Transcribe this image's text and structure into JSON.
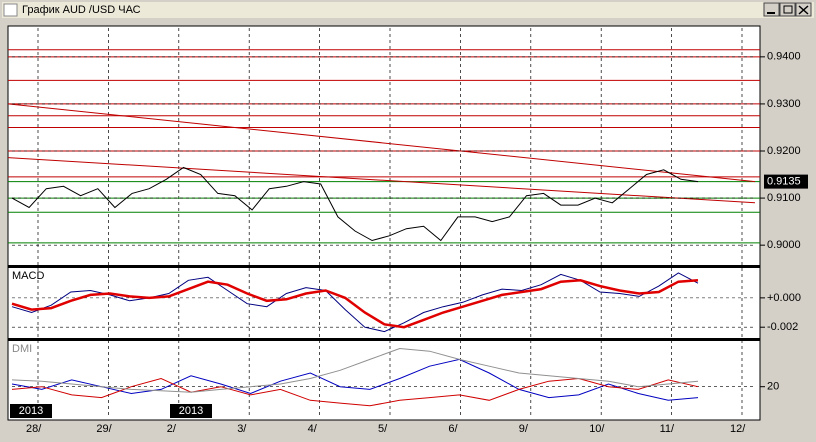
{
  "window": {
    "title": "График AUD /USD ЧАС"
  },
  "x_axis": {
    "labels": [
      "28/",
      "29/",
      "2/",
      "3/",
      "4/",
      "5/",
      "6/",
      "9/",
      "10/",
      "11/",
      "12/"
    ],
    "year_labels": [
      "2013",
      "2013"
    ]
  },
  "chart_data": [
    {
      "type": "line",
      "ylim": [
        0.896,
        0.9457
      ],
      "yticks": [
        {
          "value": 0.9,
          "label": "0.9000"
        },
        {
          "value": 0.91,
          "label": "0.9100"
        },
        {
          "value": 0.92,
          "label": "0.9200"
        },
        {
          "value": 0.93,
          "label": "0.9300"
        },
        {
          "value": 0.94,
          "label": "0.9400"
        }
      ],
      "series": [
        {
          "color": "#000000",
          "values": [
            0.91,
            0.908,
            0.912,
            0.9125,
            0.9105,
            0.912,
            0.908,
            0.911,
            0.912,
            0.914,
            0.9165,
            0.915,
            0.911,
            0.9105,
            0.9075,
            0.912,
            0.9125,
            0.9135,
            0.913,
            0.906,
            0.903,
            0.901,
            0.902,
            0.9035,
            0.904,
            0.901,
            0.906,
            0.906,
            0.905,
            0.906,
            0.9105,
            0.911,
            0.9085,
            0.9085,
            0.91,
            0.909,
            0.912,
            0.915,
            0.916,
            0.914,
            0.9135
          ]
        }
      ],
      "levels": [
        {
          "value": 0.9415,
          "color": "#c00000"
        },
        {
          "value": 0.94,
          "color": "#c00000"
        },
        {
          "value": 0.935,
          "color": "#c00000"
        },
        {
          "value": 0.93,
          "color": "#c00000"
        },
        {
          "value": 0.9275,
          "color": "#c00000"
        },
        {
          "value": 0.925,
          "color": "#c00000"
        },
        {
          "value": 0.92,
          "color": "#c00000"
        },
        {
          "value": 0.9145,
          "color": "#c00000"
        },
        {
          "value": 0.9135,
          "color": "#008000"
        },
        {
          "value": 0.91,
          "color": "#008000"
        },
        {
          "value": 0.907,
          "color": "#008000"
        },
        {
          "value": 0.9005,
          "color": "#008000"
        }
      ],
      "trendlines": [
        {
          "color": "#c00000",
          "values": [
            0.93,
            0.9135
          ]
        },
        {
          "color": "#c00000",
          "values": [
            0.9186,
            0.909
          ]
        }
      ],
      "last_price": 0.9135
    },
    {
      "type": "line",
      "title": "MACD",
      "ylim": [
        -0.0026,
        0.0019
      ],
      "yticks": [
        {
          "value": 0,
          "label": "+0.000"
        },
        {
          "value": -0.002,
          "label": "-0.002"
        }
      ],
      "series": [
        {
          "color": "#000080",
          "values": [
            -0.0006,
            -0.001,
            -0.0005,
            0.0004,
            0.0005,
            0.0002,
            -0.0002,
            0,
            0.0003,
            0.0012,
            0.0014,
            0.0005,
            -0.0004,
            -0.0006,
            0.0003,
            0.0007,
            0.0005,
            -0.0008,
            -0.002,
            -0.0023,
            -0.0017,
            -0.001,
            -0.0006,
            -0.0003,
            0.0002,
            0.0006,
            0.0005,
            0.0009,
            0.0016,
            0.0012,
            0.0004,
            0.0003,
            0.0001,
            0.0008,
            0.0017,
            0.001
          ]
        },
        {
          "color": "#e00000",
          "values": [
            -0.0004,
            -0.0008,
            -0.0007,
            -0.0002,
            0.0002,
            0.0003,
            0.0001,
            0,
            0.0001,
            0.0006,
            0.0011,
            0.0009,
            0.0003,
            -0.0002,
            -0.0001,
            0.0003,
            0.0005,
            0,
            -0.001,
            -0.0018,
            -0.002,
            -0.0015,
            -0.001,
            -0.0006,
            -0.0002,
            0.0002,
            0.0004,
            0.0006,
            0.0011,
            0.0012,
            0.0008,
            0.0005,
            0.0003,
            0.0004,
            0.0011,
            0.0012
          ]
        }
      ]
    },
    {
      "type": "line",
      "title": "DMI",
      "ylim": [
        0,
        52
      ],
      "yticks": [
        20
      ],
      "series": [
        {
          "color": "#0000c0",
          "values": [
            22,
            18,
            25,
            20,
            15,
            18,
            28,
            22,
            15,
            24,
            30,
            20,
            18,
            26,
            35,
            40,
            30,
            18,
            12,
            14,
            22,
            15,
            10,
            12
          ]
        },
        {
          "color": "#d00000",
          "values": [
            18,
            20,
            14,
            12,
            20,
            26,
            16,
            20,
            14,
            18,
            10,
            8,
            6,
            10,
            12,
            14,
            10,
            18,
            24,
            26,
            20,
            18,
            25,
            20
          ]
        },
        {
          "color": "#909090",
          "values": [
            25,
            24,
            22,
            20,
            18,
            17,
            16,
            18,
            20,
            22,
            26,
            32,
            40,
            48,
            46,
            40,
            35,
            30,
            28,
            26,
            24,
            20,
            22,
            24
          ]
        }
      ]
    }
  ]
}
